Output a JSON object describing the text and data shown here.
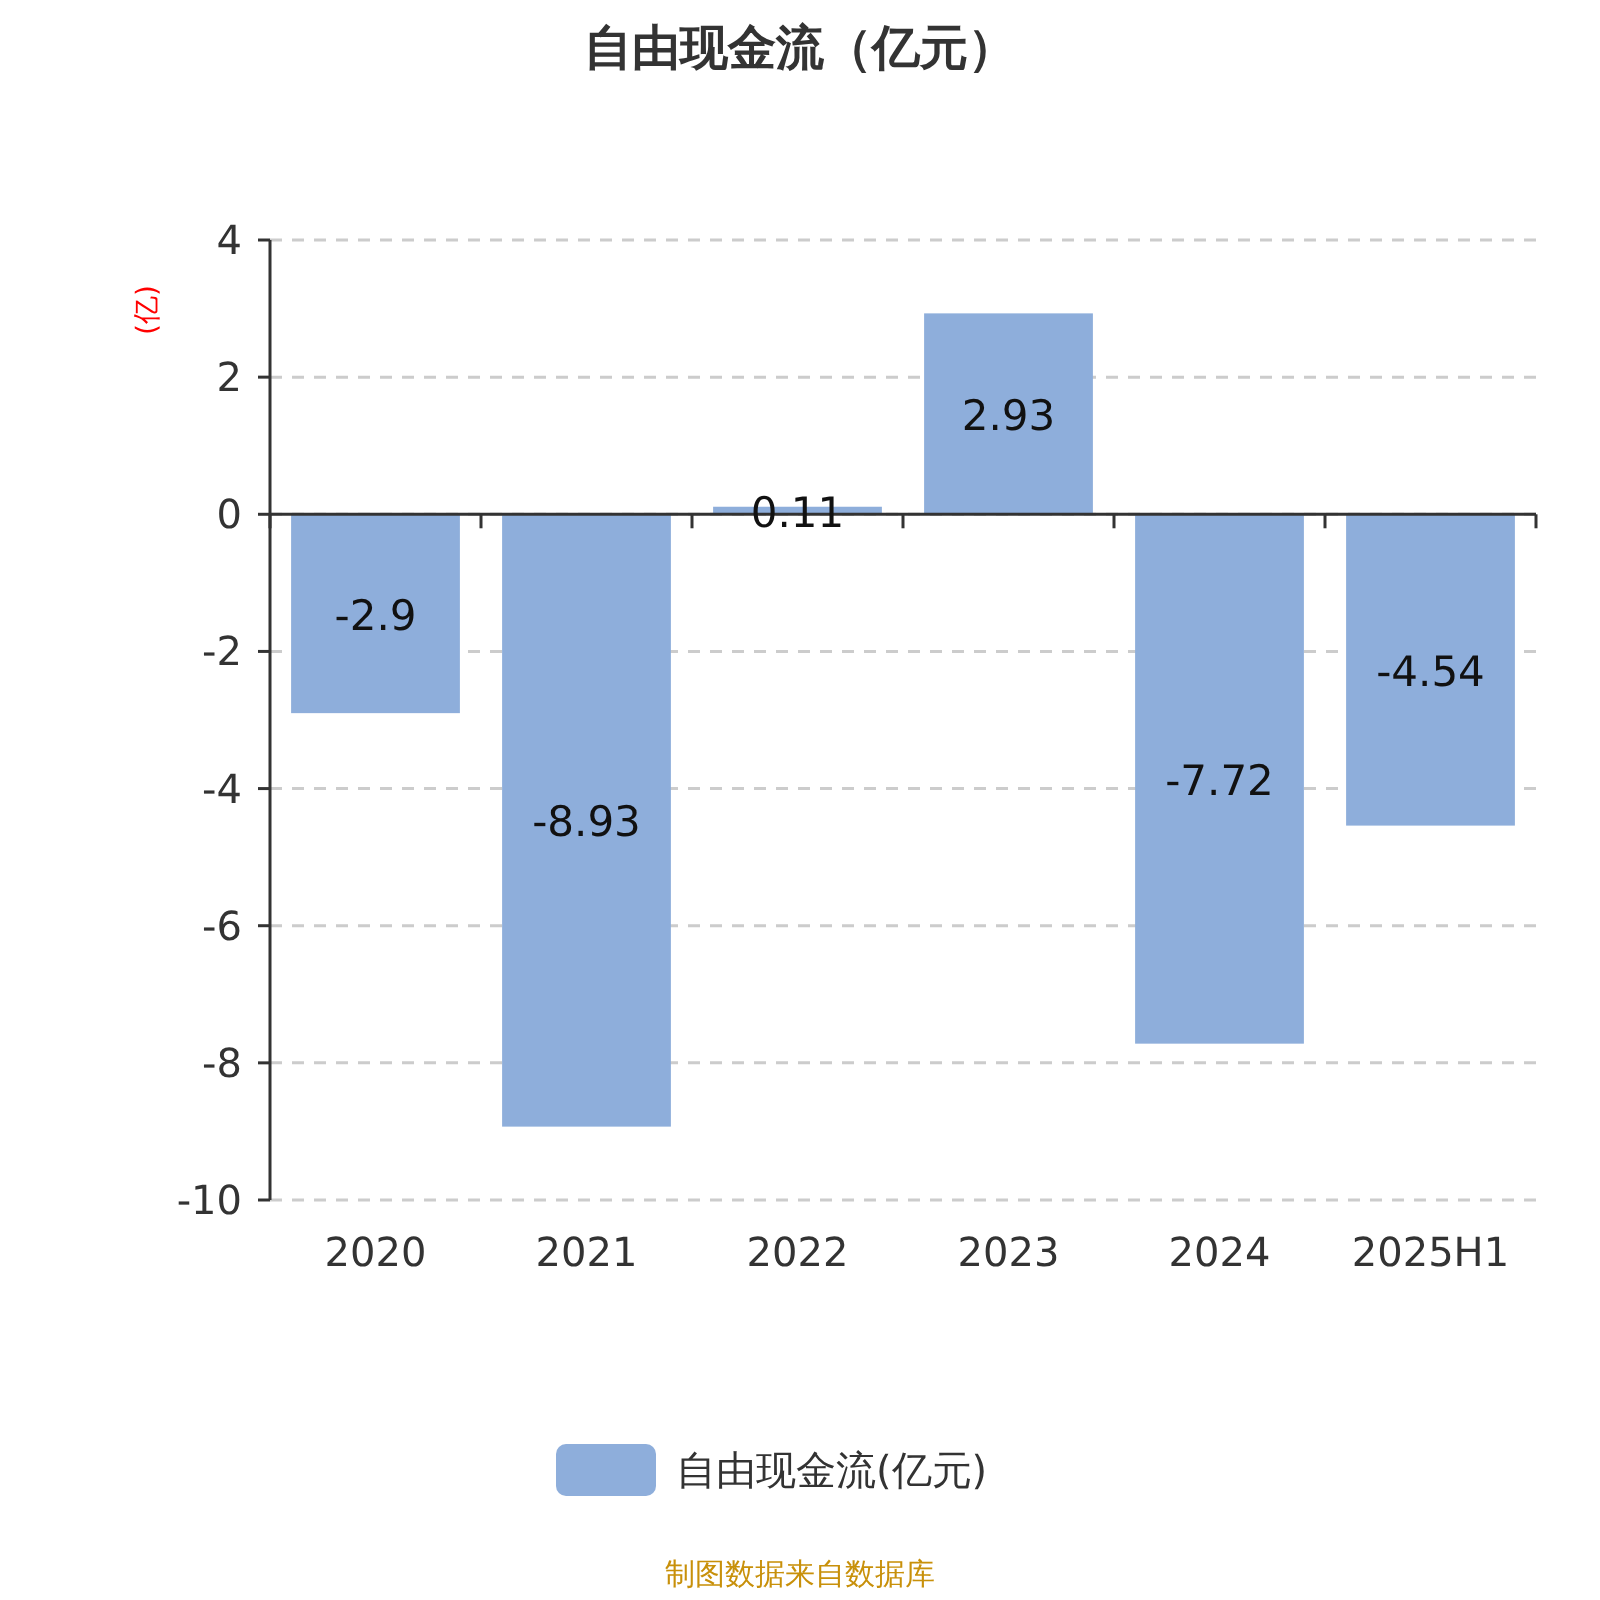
{
  "chart_data": {
    "type": "bar",
    "title": "自由现金流（亿元）",
    "ylabel": "(亿)",
    "categories": [
      "2020",
      "2021",
      "2022",
      "2023",
      "2024",
      "2025H1"
    ],
    "series": [
      {
        "name": "自由现金流(亿元)",
        "color": "#8eaedb",
        "values": [
          -2.9,
          -8.93,
          0.11,
          2.93,
          -7.72,
          -4.54
        ]
      }
    ],
    "ylim": [
      -10,
      4
    ],
    "yticks": [
      -10,
      -8,
      -6,
      -4,
      -2,
      0,
      2,
      4
    ],
    "grid": "y",
    "legend": "bottom",
    "data_labels": true,
    "annotations": [
      "制图数据来自数据库"
    ]
  }
}
